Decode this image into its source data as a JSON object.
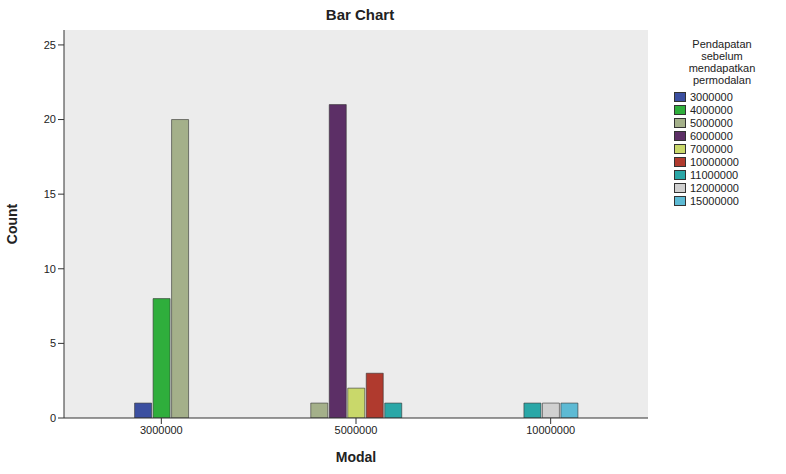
{
  "chart_data": {
    "type": "bar",
    "title": "Bar Chart",
    "x_label": "Modal",
    "y_label": "Count",
    "legend_title": "Pendapatan sebelum mendapatkan permodalan",
    "categories": [
      "3000000",
      "5000000",
      "10000000"
    ],
    "series": [
      {
        "name": "3000000",
        "color": "#3b4fa0",
        "values": [
          1,
          null,
          null
        ]
      },
      {
        "name": "4000000",
        "color": "#2fae3c",
        "values": [
          8,
          null,
          null
        ]
      },
      {
        "name": "5000000",
        "color": "#a4b08a",
        "values": [
          20,
          1,
          null
        ]
      },
      {
        "name": "6000000",
        "color": "#5c2f66",
        "values": [
          null,
          21,
          null
        ]
      },
      {
        "name": "7000000",
        "color": "#c9d86a",
        "values": [
          null,
          2,
          null
        ]
      },
      {
        "name": "10000000",
        "color": "#b03a2e",
        "values": [
          null,
          3,
          null
        ]
      },
      {
        "name": "11000000",
        "color": "#2aa7a7",
        "values": [
          null,
          1,
          1
        ]
      },
      {
        "name": "12000000",
        "color": "#d0d0d0",
        "values": [
          null,
          null,
          1
        ]
      },
      {
        "name": "15000000",
        "color": "#5dbad4",
        "values": [
          null,
          null,
          1
        ]
      }
    ],
    "ylim": [
      0,
      26
    ],
    "yticks": [
      0,
      5,
      10,
      15,
      20,
      25
    ],
    "grid": false,
    "legend": "right"
  }
}
